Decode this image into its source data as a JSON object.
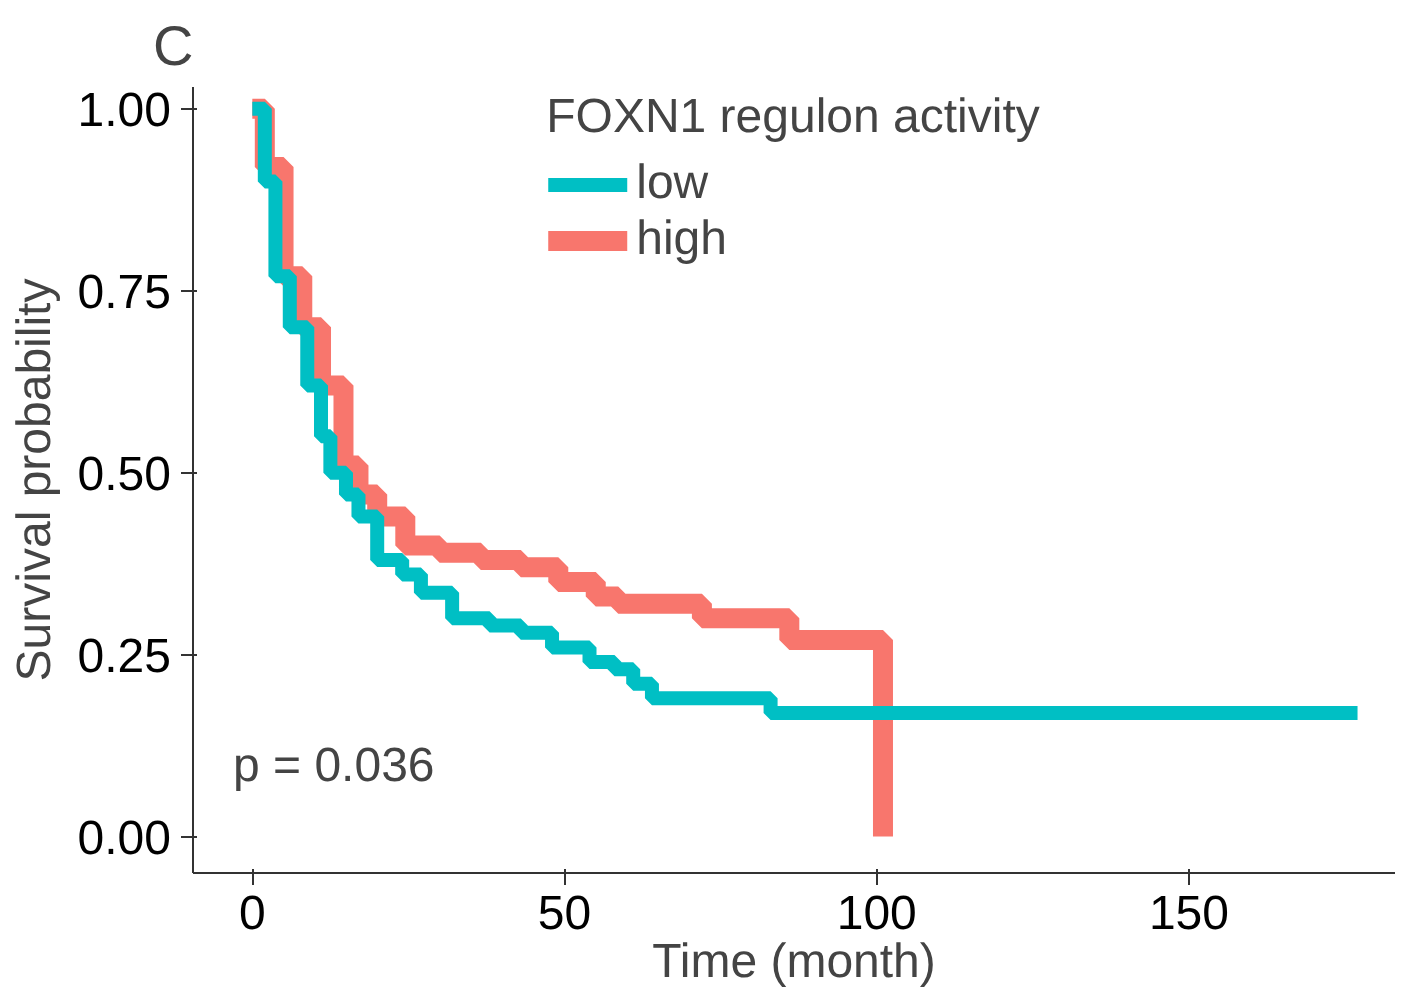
{
  "chart_data": {
    "type": "step",
    "title": "C",
    "xlabel": "Time (month)",
    "ylabel": "Survival probability",
    "legend_title": "FOXN1 regulon activity",
    "xlim": [
      -9.5,
      183
    ],
    "xticks": [
      0,
      50,
      100,
      150
    ],
    "ylim": [
      -0.05,
      1.03
    ],
    "yticks": [
      {
        "value": 0,
        "label": "0.00"
      },
      {
        "value": 0.25,
        "label": "0.25"
      },
      {
        "value": 0.5,
        "label": "0.50"
      },
      {
        "value": 0.75,
        "label": "0.75"
      },
      {
        "value": 1,
        "label": "1.00"
      }
    ],
    "grid": false,
    "legend": "top",
    "annotations": [
      "p = 0.036"
    ],
    "series": [
      {
        "name": "low",
        "color": "#00bfc4",
        "x": [
          0,
          2,
          3.7,
          6,
          8.8,
          11,
          12.5,
          15,
          17,
          20,
          24,
          27,
          32,
          38,
          43,
          48,
          54,
          58,
          61,
          64,
          82,
          83,
          177
        ],
        "values": [
          1.0,
          0.9,
          0.77,
          0.7,
          0.62,
          0.55,
          0.5,
          0.47,
          0.44,
          0.38,
          0.36,
          0.335,
          0.3,
          0.29,
          0.28,
          0.26,
          0.24,
          0.23,
          0.21,
          0.19,
          0.19,
          0.17,
          0.17
        ]
      },
      {
        "name": "high",
        "color": "#f8766d",
        "x": [
          0,
          2,
          5,
          8,
          11,
          14.6,
          17,
          20,
          24.5,
          30,
          36.6,
          43,
          49,
          55,
          58.6,
          72,
          86,
          100.5,
          101
        ],
        "values": [
          1.0,
          0.92,
          0.77,
          0.7,
          0.62,
          0.51,
          0.47,
          0.44,
          0.4,
          0.39,
          0.38,
          0.37,
          0.35,
          0.33,
          0.32,
          0.3,
          0.27,
          0.27,
          0.0
        ]
      }
    ]
  }
}
